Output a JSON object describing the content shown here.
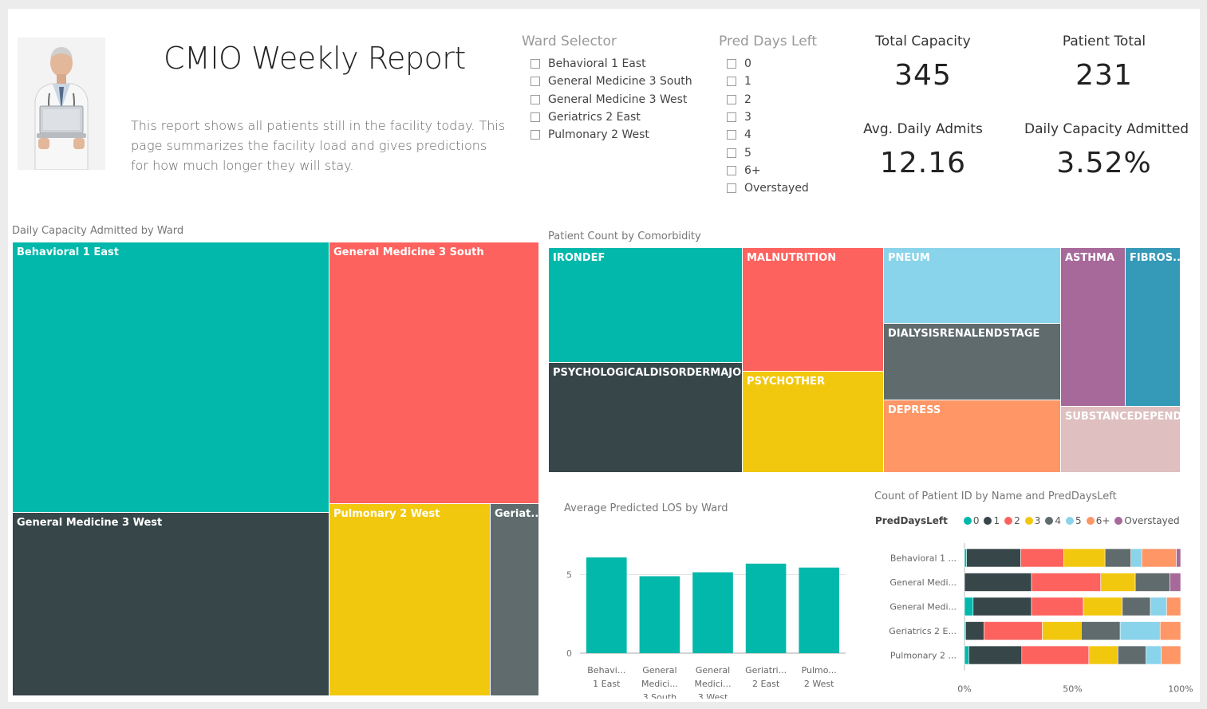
{
  "header": {
    "title": "CMIO Weekly Report",
    "description": "This report shows all patients still in the facility today.  This page summarizes the facility load and gives predictions for how much longer they will stay."
  },
  "ward_selector": {
    "title": "Ward Selector",
    "items": [
      "Behavioral 1 East",
      "General Medicine 3 South",
      "General Medicine 3 West",
      "Geriatrics 2 East",
      "Pulmonary 2 West"
    ]
  },
  "pred_days_left": {
    "title": "Pred Days Left",
    "items": [
      "0",
      "1",
      "2",
      "3",
      "4",
      "5",
      "6+",
      "Overstayed"
    ]
  },
  "kpis": {
    "total_capacity": {
      "label": "Total Capacity",
      "value": "345"
    },
    "patient_total": {
      "label": "Patient Total",
      "value": "231"
    },
    "avg_daily_admits": {
      "label": "Avg. Daily Admits",
      "value": "12.16"
    },
    "daily_capacity_admitted": {
      "label": "Daily  Capacity Admitted",
      "value": "3.52%"
    }
  },
  "colors": {
    "teal": "#01b8aa",
    "dark": "#374649",
    "red": "#fd625e",
    "yellow": "#f2c80f",
    "gray": "#5f6b6d",
    "lightblue": "#8ad4eb",
    "orange": "#fe9666",
    "purple": "#a66999",
    "blue": "#3599b8",
    "pink": "#dfbfbf"
  },
  "treemap_ward": {
    "title": "Daily Capacity Admitted by Ward",
    "tiles": [
      {
        "label": "Behavioral 1 East",
        "color": "#01b8aa"
      },
      {
        "label": "General Medicine 3 South",
        "color": "#fd625e"
      },
      {
        "label": "General Medicine 3 West",
        "color": "#374649"
      },
      {
        "label": "Pulmonary 2 West",
        "color": "#f2c80f"
      },
      {
        "label": "Geriat...",
        "color": "#5f6b6d"
      }
    ]
  },
  "treemap_comorbidity": {
    "title": "Patient Count by Comorbidity",
    "tiles": [
      {
        "label": "IRONDEF",
        "color": "#01b8aa"
      },
      {
        "label": "PSYCHOLOGICALDISORDERMAJOR",
        "color": "#374649"
      },
      {
        "label": "MALNUTRITION",
        "color": "#fd625e"
      },
      {
        "label": "PSYCHOTHER",
        "color": "#f2c80f"
      },
      {
        "label": "PNEUM",
        "color": "#8ad4eb"
      },
      {
        "label": "DIALYSISRENALENDSTAGE",
        "color": "#5f6b6d"
      },
      {
        "label": "DEPRESS",
        "color": "#fe9666"
      },
      {
        "label": "ASTHMA",
        "color": "#a66999"
      },
      {
        "label": "FIBROS...",
        "color": "#3599b8"
      },
      {
        "label": "SUBSTANCEDEPEND...",
        "color": "#dfbfbf"
      }
    ]
  },
  "chart_data": [
    {
      "type": "bar",
      "title": "Average Predicted LOS by Ward",
      "categories": [
        [
          "Behavi...",
          "1 East"
        ],
        [
          "General",
          "Medici...",
          "3 South"
        ],
        [
          "General",
          "Medici...",
          "3 West"
        ],
        [
          "Geriatri...",
          "2 East"
        ],
        [
          "Pulmo...",
          "2 West"
        ]
      ],
      "values": [
        6.1,
        4.9,
        5.15,
        5.7,
        5.45
      ],
      "yticks": [
        "0",
        "5"
      ],
      "ylim": [
        0,
        6.5
      ],
      "color": "#01b8aa"
    },
    {
      "type": "bar",
      "stacked": "100%",
      "orientation": "horizontal",
      "title": "Count of Patient ID by Name and PredDaysLeft",
      "legend_title": "PredDaysLeft",
      "categories": [
        "Behavioral 1 ...",
        "General Medi...",
        "General Medi...",
        "Geriatrics 2 E...",
        "Pulmonary 2 ..."
      ],
      "xticks": [
        "0%",
        "50%",
        "100%"
      ],
      "series": [
        {
          "name": "0",
          "color": "#01b8aa",
          "values": [
            1,
            0,
            4,
            0.5,
            2
          ]
        },
        {
          "name": "1",
          "color": "#374649",
          "values": [
            25,
            31,
            27,
            8.5,
            24.5
          ]
        },
        {
          "name": "2",
          "color": "#fd625e",
          "values": [
            20,
            32,
            24,
            27,
            31
          ]
        },
        {
          "name": "3",
          "color": "#f2c80f",
          "values": [
            19,
            16,
            18,
            18,
            13.5
          ]
        },
        {
          "name": "4",
          "color": "#5f6b6d",
          "values": [
            12,
            16,
            13,
            18,
            13
          ]
        },
        {
          "name": "5",
          "color": "#8ad4eb",
          "values": [
            5,
            0,
            7.5,
            18.5,
            7
          ]
        },
        {
          "name": "6+",
          "color": "#fe9666",
          "values": [
            16,
            0,
            6.5,
            9.5,
            9
          ]
        },
        {
          "name": "Overstayed",
          "color": "#a66999",
          "values": [
            2,
            5,
            0,
            0,
            0
          ]
        }
      ]
    }
  ]
}
